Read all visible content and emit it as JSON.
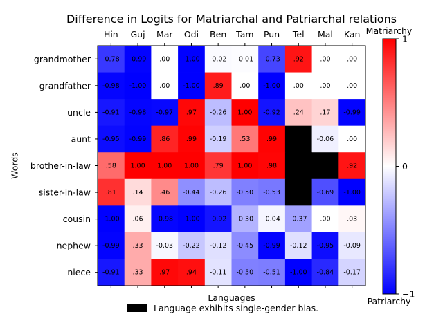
{
  "chart_data": {
    "type": "heatmap",
    "title": "Difference in Logits for Matriarchal and Patriarchal relations",
    "xlabel": "Languages",
    "ylabel": "Words",
    "columns": [
      "Hin",
      "Guj",
      "Mar",
      "Odi",
      "Ben",
      "Tam",
      "Pun",
      "Tel",
      "Mal",
      "Kan"
    ],
    "rows": [
      "grandmother",
      "grandfather",
      "uncle",
      "aunt",
      "brother-in-law",
      "sister-in-law",
      "cousin",
      "nephew",
      "niece"
    ],
    "values": [
      [
        -0.78,
        -0.99,
        0.0,
        -1.0,
        -0.02,
        -0.01,
        -0.73,
        0.92,
        0.0,
        0.0
      ],
      [
        -0.98,
        -1.0,
        0.0,
        -1.0,
        0.89,
        0.0,
        -1.0,
        0.0,
        0.0,
        0.0
      ],
      [
        -0.91,
        -0.98,
        -0.97,
        0.97,
        -0.26,
        1.0,
        -0.92,
        0.24,
        0.17,
        -0.99
      ],
      [
        -0.95,
        -0.99,
        0.86,
        0.99,
        -0.19,
        0.53,
        0.99,
        null,
        -0.06,
        0.0
      ],
      [
        0.58,
        1.0,
        1.0,
        1.0,
        0.79,
        1.0,
        0.98,
        null,
        null,
        0.92
      ],
      [
        0.81,
        0.14,
        0.46,
        -0.44,
        -0.26,
        -0.5,
        -0.53,
        null,
        -0.69,
        -1.0
      ],
      [
        -1.0,
        0.06,
        -0.98,
        -1.0,
        -0.92,
        -0.3,
        -0.04,
        -0.37,
        0.0,
        0.03
      ],
      [
        -0.99,
        0.33,
        -0.03,
        -0.22,
        -0.12,
        -0.45,
        -0.99,
        -0.12,
        -0.95,
        -0.09
      ],
      [
        -0.91,
        0.33,
        0.97,
        0.94,
        -0.11,
        -0.5,
        -0.51,
        -1.0,
        -0.84,
        -0.17
      ]
    ],
    "value_labels": [
      [
        "-0.78",
        "-0.99",
        ".00",
        "-1.00",
        "-0.02",
        "-0.01",
        "-0.73",
        ".92",
        ".00",
        ".00"
      ],
      [
        "-0.98",
        "-1.00",
        ".00",
        "-1.00",
        ".89",
        ".00",
        "-1.00",
        ".00",
        ".00",
        ".00"
      ],
      [
        "-0.91",
        "-0.98",
        "-0.97",
        ".97",
        "-0.26",
        "1.00",
        "-0.92",
        ".24",
        ".17",
        "-0.99"
      ],
      [
        "-0.95",
        "-0.99",
        ".86",
        ".99",
        "-0.19",
        ".53",
        ".99",
        "",
        "-0.06",
        ".00"
      ],
      [
        ".58",
        "1.00",
        "1.00",
        "1.00",
        ".79",
        "1.00",
        ".98",
        "",
        "",
        ".92"
      ],
      [
        ".81",
        ".14",
        ".46",
        "-0.44",
        "-0.26",
        "-0.50",
        "-0.53",
        "",
        "-0.69",
        "-1.00"
      ],
      [
        "-1.00",
        ".06",
        "-0.98",
        "-1.00",
        "-0.92",
        "-0.30",
        "-0.04",
        "-0.37",
        ".00",
        ".03"
      ],
      [
        "-0.99",
        ".33",
        "-0.03",
        "-0.22",
        "-0.12",
        "-0.45",
        "-0.99",
        "-0.12",
        "-0.95",
        "-0.09"
      ],
      [
        "-0.91",
        ".33",
        ".97",
        ".94",
        "-0.11",
        "-0.50",
        "-0.51",
        "-1.00",
        "-0.84",
        "-0.17"
      ]
    ],
    "colormap": "bwr",
    "vmin": -1,
    "vmax": 1,
    "single_gender_bias_color": "#000000",
    "colorbar": {
      "top_label": "Matriarchy",
      "bottom_label": "Patriarchy",
      "ticks": [
        1,
        0,
        -1
      ],
      "tick_labels": [
        "1",
        "0",
        "−1"
      ]
    },
    "legend": {
      "placement": "bottom-center",
      "entries": [
        {
          "label": "Language exhibits single-gender bias.",
          "color": "#000000"
        }
      ]
    },
    "x_tick_position": "top"
  }
}
